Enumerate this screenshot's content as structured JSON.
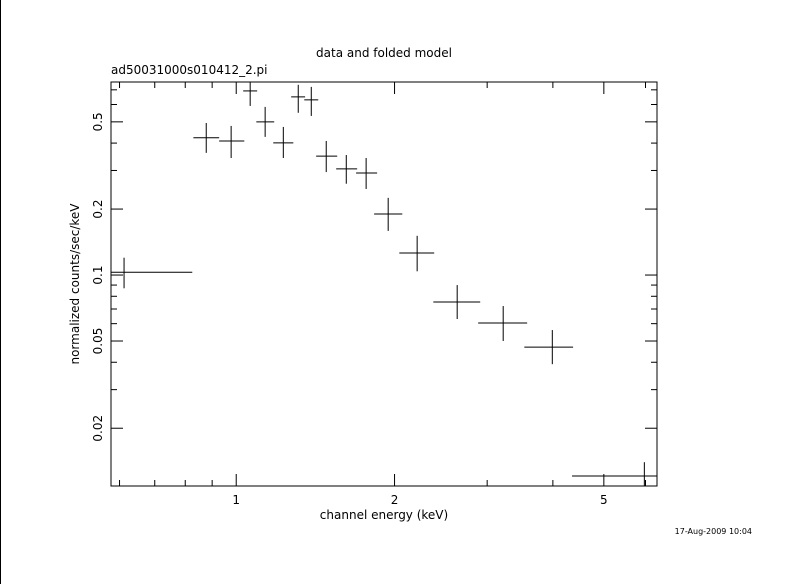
{
  "chart_data": {
    "type": "scatter",
    "title": "data and folded model",
    "subtitle": "ad50031000s010412_2.pi",
    "x_label": "channel energy (keV)",
    "y_label": "normalized counts/sec/keV",
    "timestamp": "17-Aug-2009 10:04",
    "xscale": "log",
    "yscale": "log",
    "xlim": [
      0.578,
      6.31
    ],
    "ylim": [
      0.0109,
      0.76
    ],
    "xticks": [
      1,
      2,
      5
    ],
    "yticks": [
      0.02,
      0.05,
      0.1,
      0.2,
      0.5
    ],
    "xminor_ticks": [
      0.6,
      0.7,
      0.8,
      0.9,
      3,
      4,
      6
    ],
    "yminor_ticks": [
      0.03,
      0.04,
      0.06,
      0.07,
      0.08,
      0.09,
      0.3,
      0.4,
      0.6,
      0.7
    ],
    "series": [
      {
        "name": "data",
        "color": "#000000",
        "x": [
          0.612,
          0.877,
          0.978,
          1.063,
          1.135,
          1.229,
          1.312,
          1.389,
          1.483,
          1.619,
          1.766,
          1.945,
          2.208,
          2.631,
          3.218,
          3.99,
          5.97
        ],
        "xlow": [
          0.55,
          0.829,
          0.928,
          1.031,
          1.092,
          1.176,
          1.272,
          1.347,
          1.419,
          1.549,
          1.69,
          1.829,
          2.042,
          2.37,
          2.884,
          3.53,
          4.35
        ],
        "xhigh": [
          0.825,
          0.928,
          1.036,
          1.096,
          1.181,
          1.284,
          1.352,
          1.432,
          1.556,
          1.698,
          1.853,
          2.069,
          2.379,
          2.91,
          3.574,
          4.37,
          6.31
        ],
        "y": [
          0.103,
          0.423,
          0.409,
          0.692,
          0.5,
          0.401,
          0.65,
          0.63,
          0.349,
          0.305,
          0.292,
          0.19,
          0.126,
          0.0753,
          0.0604,
          0.0469,
          0.0121
        ],
        "ylow": [
          0.087,
          0.361,
          0.342,
          0.591,
          0.427,
          0.342,
          0.55,
          0.532,
          0.295,
          0.261,
          0.247,
          0.159,
          0.104,
          0.063,
          0.05,
          0.0392,
          0.0105
        ],
        "yhigh": [
          0.12,
          0.494,
          0.479,
          0.76,
          0.585,
          0.474,
          0.738,
          0.722,
          0.409,
          0.353,
          0.342,
          0.225,
          0.151,
          0.09,
          0.0722,
          0.0561,
          0.014
        ]
      }
    ]
  }
}
